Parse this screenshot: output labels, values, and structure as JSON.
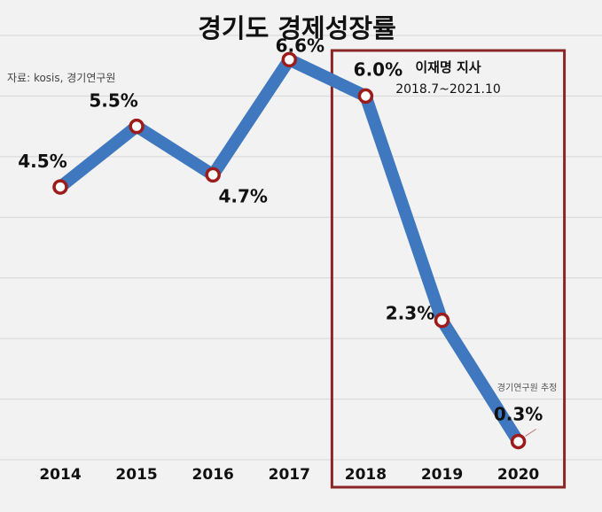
{
  "chart_data": {
    "type": "line",
    "title": "경기도 경제성장률",
    "source": "자료: kosis, 경기연구원",
    "categories": [
      "2014",
      "2015",
      "2016",
      "2017",
      "2018",
      "2019",
      "2020"
    ],
    "series": [
      {
        "values": [
          4.5,
          5.5,
          4.7,
          6.6,
          6.0,
          2.3,
          0.3
        ],
        "labels": [
          "4.5%",
          "5.5%",
          "4.7%",
          "6.6%",
          "6.0%",
          "2.3%",
          "0.3%"
        ]
      }
    ],
    "ylim": [
      0,
      7
    ],
    "grid": true,
    "highlight": {
      "title": "이재명 지사",
      "period": "2018.7~2021.10",
      "from": "2018",
      "to": "2020"
    },
    "annotation": {
      "text": "경기연구원 추정",
      "category": "2020"
    }
  },
  "colors": {
    "line": "#3f78bf",
    "marker_stroke": "#9c1c1c",
    "highlight_border": "#8c2525"
  }
}
